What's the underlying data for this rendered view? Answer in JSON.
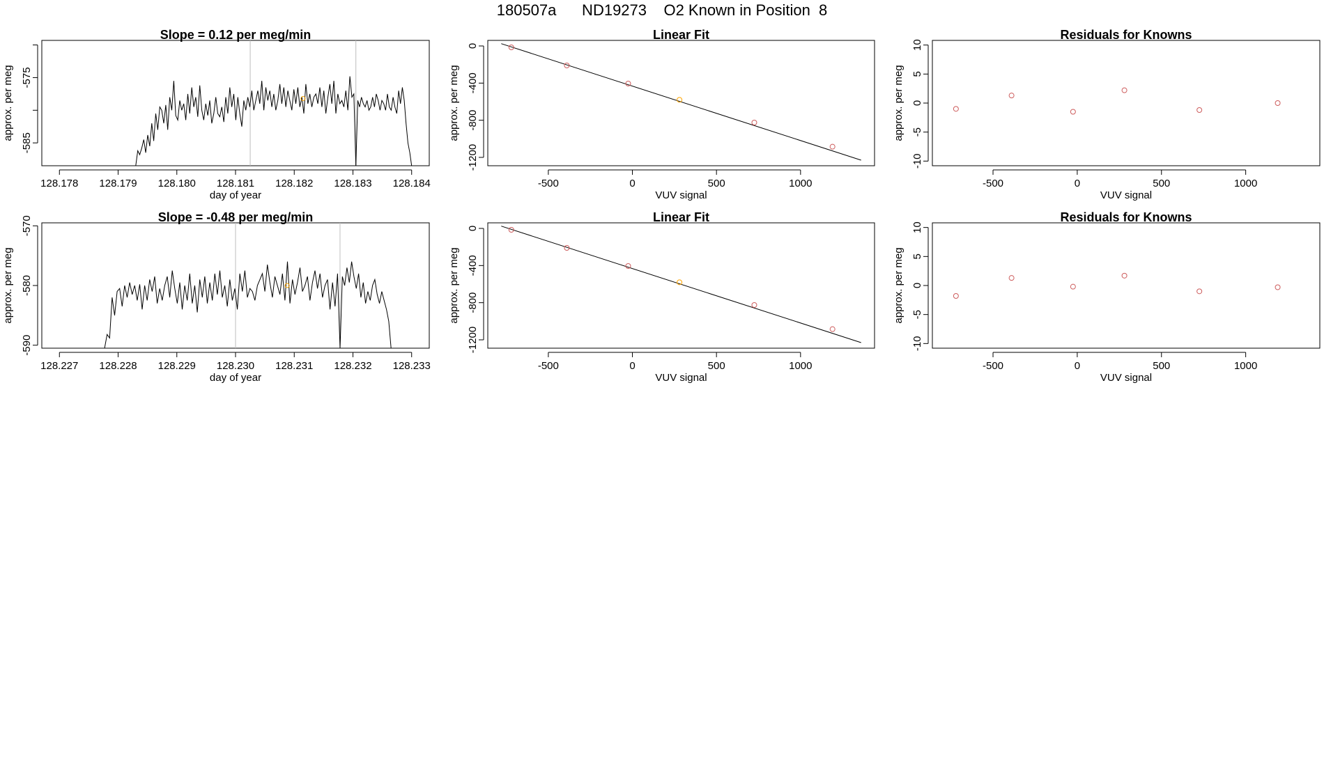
{
  "main_title": "180507a      ND19273    O2 Known in Position  8",
  "colors": {
    "line": "#000000",
    "points": "#cd5c5c",
    "highlight": "#ffa500",
    "vline": "#bebebe"
  },
  "chart_data": [
    {
      "id": "timeseries-1",
      "type": "line",
      "title": "Slope =  0.12  per meg/min",
      "xlabel": "day of year",
      "ylabel": "approx. per meg",
      "xlim": [
        128.1777,
        128.1843
      ],
      "ylim": [
        -588.5,
        -569.3
      ],
      "xticks": [
        128.178,
        128.179,
        128.18,
        128.181,
        128.182,
        128.183,
        128.184
      ],
      "xtick_labels": [
        "128.178",
        "128.179",
        "128.180",
        "128.181",
        "128.182",
        "128.183",
        "128.184"
      ],
      "yticks": [
        -570,
        -575,
        -580,
        -585
      ],
      "ytick_labels": [
        "",
        "-575",
        "",
        "-585"
      ],
      "vlines": [
        128.18125,
        128.18305
      ],
      "highlight_point": {
        "x": 128.18215,
        "y": -578.2
      },
      "series": [
        {
          "name": "segment-1",
          "x_start": 128.1793,
          "x_end": 128.18305,
          "y": [
            -588.5,
            -586.2,
            -586.8,
            -585.8,
            -584.5,
            -586.5,
            -583.8,
            -585.5,
            -582.0,
            -584.7,
            -580.5,
            -583.0,
            -579.5,
            -580.0,
            -582.0,
            -579.2,
            -583.0,
            -578.0,
            -580.0,
            -575.5,
            -580.8,
            -581.5,
            -578.5,
            -580.0,
            -579.0,
            -581.5,
            -577.5,
            -580.5,
            -576.5,
            -579.5,
            -578.0,
            -581.0,
            -576.2,
            -580.0,
            -581.5,
            -579.0,
            -580.8,
            -578.5,
            -582.0,
            -580.5,
            -578.0,
            -580.5,
            -581.0,
            -579.5,
            -581.8,
            -578.0,
            -580.5,
            -576.5,
            -579.5,
            -577.5,
            -581.5,
            -578.0,
            -580.5,
            -582.5,
            -578.5,
            -580.0,
            -578.0,
            -579.5,
            -577.0,
            -580.0,
            -578.5,
            -577.0,
            -579.0,
            -575.5,
            -580.0,
            -576.5,
            -578.5,
            -577.0,
            -579.5,
            -577.5,
            -580.0,
            -578.5,
            -576.0,
            -579.0,
            -576.5,
            -579.5,
            -577.0,
            -578.5,
            -580.0,
            -576.8,
            -579.0,
            -576.5,
            -579.5,
            -578.0,
            -580.5,
            -576.0,
            -579.0,
            -577.5,
            -579.5,
            -578.0,
            -577.5,
            -579.0,
            -576.5,
            -579.5,
            -577.0,
            -580.5,
            -578.0,
            -576.0,
            -579.0,
            -575.5,
            -580.5,
            -577.5,
            -579.0,
            -578.5,
            -579.5,
            -577.0,
            -580.0,
            -574.8,
            -578.0,
            -577.5,
            -588.5
          ]
        },
        {
          "name": "segment-2",
          "x_start": 128.18305,
          "x_end": 128.184,
          "y": [
            -588.5,
            -578.5,
            -579.5,
            -578.0,
            -579.0,
            -579.5,
            -578.5,
            -580.0,
            -579.5,
            -578.0,
            -579.5,
            -577.5,
            -578.5,
            -580.0,
            -578.5,
            -579.0,
            -580.0,
            -577.5,
            -579.5,
            -580.0,
            -578.0,
            -579.5,
            -580.5,
            -577.0,
            -579.0,
            -576.5,
            -578.5,
            -582.0,
            -585.0,
            -586.5,
            -588.5
          ]
        }
      ]
    },
    {
      "id": "linearfit-1",
      "type": "scatter",
      "title": "Linear Fit",
      "xlabel": "VUV signal",
      "ylabel": "approx. per meg",
      "xlim": [
        -860,
        1440
      ],
      "ylim": [
        -1290,
        60
      ],
      "xticks": [
        -500,
        0,
        500,
        1000
      ],
      "xtick_labels": [
        "-500",
        "0",
        "500",
        "1000"
      ],
      "yticks": [
        0,
        -400,
        -800,
        -1200
      ],
      "ytick_labels": [
        "0",
        "-400",
        "-800",
        "-1200"
      ],
      "fit_line": {
        "x": [
          -780,
          1360
        ],
        "y": [
          25,
          -1230
        ]
      },
      "points_x": [
        -720,
        -390,
        -25,
        280,
        725,
        1190
      ],
      "points_y": [
        -15,
        -210,
        -405,
        -580,
        -825,
        -1085
      ],
      "highlight_index": 3
    },
    {
      "id": "residuals-1",
      "type": "scatter",
      "title": "Residuals for Knowns",
      "xlabel": "VUV signal",
      "ylabel": "approx. per meg",
      "xlim": [
        -860,
        1440
      ],
      "ylim": [
        -10.8,
        10.8
      ],
      "xticks": [
        -500,
        0,
        500,
        1000
      ],
      "xtick_labels": [
        "-500",
        "0",
        "500",
        "1000"
      ],
      "yticks": [
        10,
        5,
        0,
        -5,
        -10
      ],
      "ytick_labels": [
        "10",
        "5",
        "0",
        "-5",
        "-10"
      ],
      "points_x": [
        -720,
        -390,
        -25,
        280,
        725,
        1190
      ],
      "points_y": [
        -1.0,
        1.3,
        -1.5,
        2.2,
        -1.2,
        0.0
      ]
    },
    {
      "id": "timeseries-2",
      "type": "line",
      "title": "Slope =  -0.48  per meg/min",
      "xlabel": "day of year",
      "ylabel": "approx. per meg",
      "xlim": [
        128.2267,
        128.2333
      ],
      "ylim": [
        -590.5,
        -569.5
      ],
      "xticks": [
        128.227,
        128.228,
        128.229,
        128.23,
        128.231,
        128.232,
        128.233
      ],
      "xtick_labels": [
        "128.227",
        "128.228",
        "128.229",
        "128.230",
        "128.231",
        "128.232",
        "128.233"
      ],
      "yticks": [
        -570,
        -580,
        -590
      ],
      "ytick_labels": [
        "-570",
        "-580",
        "-590"
      ],
      "vlines": [
        128.23,
        128.23178
      ],
      "highlight_point": {
        "x": 128.23088,
        "y": -580.0
      },
      "series": [
        {
          "name": "segment-1",
          "x_start": 128.22777,
          "x_end": 128.23178,
          "y": [
            -590.5,
            -588.2,
            -588.8,
            -582.0,
            -585.0,
            -581.0,
            -580.5,
            -583.5,
            -580.0,
            -582.0,
            -579.5,
            -581.5,
            -580.0,
            -582.5,
            -579.8,
            -584.0,
            -580.0,
            -582.5,
            -579.0,
            -581.0,
            -578.5,
            -583.0,
            -580.5,
            -582.5,
            -580.0,
            -578.5,
            -582.0,
            -577.5,
            -580.5,
            -583.0,
            -579.5,
            -584.0,
            -580.0,
            -582.5,
            -578.0,
            -583.0,
            -580.0,
            -584.5,
            -579.0,
            -582.0,
            -578.5,
            -583.0,
            -579.5,
            -582.5,
            -578.0,
            -581.5,
            -577.5,
            -582.0,
            -580.0,
            -583.5,
            -579.0,
            -582.5,
            -580.5,
            -584.0,
            -578.0,
            -581.0,
            -577.5,
            -582.0,
            -580.5,
            -581.0,
            -582.5,
            -580.0,
            -579.0,
            -578.0,
            -581.0,
            -576.5,
            -579.5,
            -582.0,
            -578.5,
            -580.0,
            -581.5,
            -578.0,
            -582.5,
            -576.0,
            -583.0,
            -579.0,
            -581.5,
            -579.5,
            -577.0,
            -581.0,
            -580.0,
            -578.5,
            -582.5,
            -579.5,
            -577.5,
            -580.5,
            -578.0,
            -582.0,
            -580.0,
            -579.0,
            -584.0,
            -579.5,
            -583.5,
            -578.0,
            -590.5
          ]
        },
        {
          "name": "segment-2",
          "x_start": 128.23178,
          "x_end": 128.23265,
          "y": [
            -590.5,
            -578.5,
            -580.0,
            -577.0,
            -579.5,
            -576.0,
            -578.5,
            -580.5,
            -578.0,
            -582.0,
            -579.5,
            -583.0,
            -581.0,
            -582.5,
            -580.0,
            -579.0,
            -581.5,
            -583.0,
            -581.0,
            -582.5,
            -584.0,
            -586.0,
            -590.5
          ]
        }
      ]
    },
    {
      "id": "linearfit-2",
      "type": "scatter",
      "title": "Linear Fit",
      "xlabel": "VUV signal",
      "ylabel": "approx. per meg",
      "xlim": [
        -860,
        1440
      ],
      "ylim": [
        -1290,
        60
      ],
      "xticks": [
        -500,
        0,
        500,
        1000
      ],
      "xtick_labels": [
        "-500",
        "0",
        "500",
        "1000"
      ],
      "yticks": [
        0,
        -400,
        -800,
        -1200
      ],
      "ytick_labels": [
        "0",
        "-400",
        "-800",
        "-1200"
      ],
      "fit_line": {
        "x": [
          -780,
          1360
        ],
        "y": [
          25,
          -1230
        ]
      },
      "points_x": [
        -720,
        -390,
        -25,
        280,
        725,
        1190
      ],
      "points_y": [
        -15,
        -210,
        -405,
        -580,
        -825,
        -1085
      ],
      "highlight_index": 3
    },
    {
      "id": "residuals-2",
      "type": "scatter",
      "title": "Residuals for Knowns",
      "xlabel": "VUV signal",
      "ylabel": "approx. per meg",
      "xlim": [
        -860,
        1440
      ],
      "ylim": [
        -10.8,
        10.8
      ],
      "xticks": [
        -500,
        0,
        500,
        1000
      ],
      "xtick_labels": [
        "-500",
        "0",
        "500",
        "1000"
      ],
      "yticks": [
        10,
        5,
        0,
        -5,
        -10
      ],
      "ytick_labels": [
        "10",
        "5",
        "0",
        "-5",
        "-10"
      ],
      "points_x": [
        -720,
        -390,
        -25,
        280,
        725,
        1190
      ],
      "points_y": [
        -1.8,
        1.3,
        -0.2,
        1.7,
        -1.0,
        -0.3
      ]
    }
  ]
}
